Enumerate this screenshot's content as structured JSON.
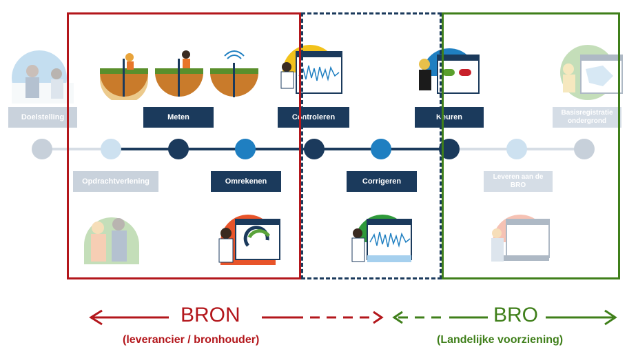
{
  "steps": {
    "doelstelling": "Doelstelling",
    "opdrachtverlening": "Opdrachtverlening",
    "meten": "Meten",
    "omrekenen": "Omrekenen",
    "controleren": "Controleren",
    "corrigeren": "Corrigeren",
    "keuren": "Keuren",
    "leveren": "Leveren aan de BRO",
    "basisregistratie": "Basisregistratie ondergrond"
  },
  "legend": {
    "bron_title": "BRON",
    "bron_sub": "(leverancier / bronhouder)",
    "bro_title": "BRO",
    "bro_sub": "(Landelijke voorziening)"
  },
  "colors": {
    "dark_blue": "#1b3a5c",
    "light_blue": "#1f7fc1",
    "red": "#b3161b",
    "green": "#3f7f1a"
  }
}
